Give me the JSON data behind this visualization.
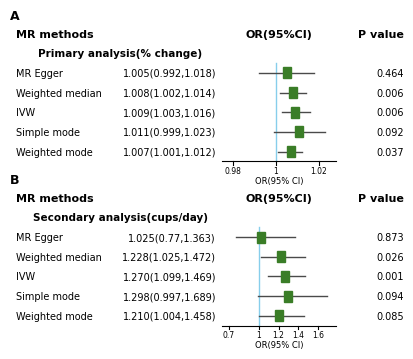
{
  "panel_A": {
    "label": "A",
    "subtitle": "Primary analysis(% change)",
    "methods": [
      "MR Egger",
      "Weighted median",
      "IVW",
      "Simple mode",
      "Weighted mode"
    ],
    "or_labels": [
      "1.005(0.992,1.018)",
      "1.008(1.002,1.014)",
      "1.009(1.003,1.016)",
      "1.011(0.999,1.023)",
      "1.007(1.001,1.012)"
    ],
    "or": [
      1.005,
      1.008,
      1.009,
      1.011,
      1.007
    ],
    "ci_low": [
      0.992,
      1.002,
      1.003,
      0.999,
      1.001
    ],
    "ci_high": [
      1.018,
      1.014,
      1.016,
      1.023,
      1.012
    ],
    "pvalues": [
      "0.464",
      "0.006",
      "0.006",
      "0.092",
      "0.037"
    ],
    "xlim": [
      0.975,
      1.028
    ],
    "xticks": [
      0.98,
      1.0,
      1.02
    ],
    "xticklabels": [
      "0.98",
      "1",
      "1.02"
    ],
    "xlabel": "OR(95% CI)",
    "null_value": 1.0
  },
  "panel_B": {
    "label": "B",
    "subtitle": "Secondary analysis(cups/day)",
    "methods": [
      "MR Egger",
      "Weighted median",
      "IVW",
      "Simple mode",
      "Weighted mode"
    ],
    "or_labels": [
      "1.025(0.77,1.363)",
      "1.228(1.025,1.472)",
      "1.270(1.099,1.469)",
      "1.298(0.997,1.689)",
      "1.210(1.004,1.458)"
    ],
    "or": [
      1.025,
      1.228,
      1.27,
      1.298,
      1.21
    ],
    "ci_low": [
      0.77,
      1.025,
      1.099,
      0.997,
      1.004
    ],
    "ci_high": [
      1.363,
      1.472,
      1.469,
      1.689,
      1.458
    ],
    "pvalues": [
      "0.873",
      "0.026",
      "0.001",
      "0.094",
      "0.085"
    ],
    "xlim": [
      0.63,
      1.78
    ],
    "xticks": [
      0.7,
      1.0,
      1.2,
      1.4,
      1.6
    ],
    "xticklabels": [
      "0.7",
      "1",
      "1.2",
      "1.4",
      "1.6"
    ],
    "xlabel": "OR(95% CI)",
    "null_value": 1.0
  },
  "colors": {
    "square": "#3a7d27",
    "line": "#4a4a4a",
    "null_line": "#87ceeb",
    "background": "#ffffff"
  },
  "header_methods": "MR methods",
  "header_or": "OR(95%CI)",
  "header_p": "P value",
  "font_size": 7.0,
  "header_font_size": 8.0,
  "subtitle_font_size": 7.5
}
